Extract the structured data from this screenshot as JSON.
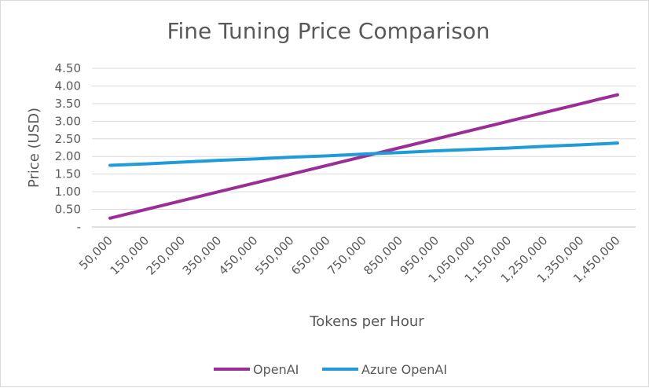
{
  "chart_data": {
    "type": "line",
    "title": "Fine Tuning Price Comparison",
    "xlabel": "Tokens per Hour",
    "ylabel": "Price (USD)",
    "x": [
      50000,
      150000,
      250000,
      350000,
      450000,
      550000,
      650000,
      750000,
      850000,
      950000,
      1050000,
      1150000,
      1250000,
      1350000,
      1450000
    ],
    "categories": [
      "50,000",
      "150,000",
      "250,000",
      "350,000",
      "450,000",
      "550,000",
      "650,000",
      "750,000",
      "850,000",
      "950,000",
      "1,050,000",
      "1,150,000",
      "1,250,000",
      "1,350,000",
      "1,450,000"
    ],
    "y_ticks": [
      "-",
      "0.50",
      "1.00",
      "1.50",
      "2.00",
      "2.50",
      "3.00",
      "3.50",
      "4.00",
      "4.50"
    ],
    "ylim": [
      0,
      4.5
    ],
    "grid": true,
    "legend_position": "bottom",
    "series": [
      {
        "name": "OpenAI",
        "color": "#9b2d96",
        "values": [
          0.25,
          0.5,
          0.75,
          1.0,
          1.25,
          1.5,
          1.75,
          2.0,
          2.25,
          2.5,
          2.75,
          3.0,
          3.25,
          3.5,
          3.75
        ]
      },
      {
        "name": "Azure OpenAI",
        "color": "#1f9bd7",
        "values": [
          1.75,
          1.79,
          1.84,
          1.89,
          1.93,
          1.98,
          2.02,
          2.07,
          2.11,
          2.16,
          2.2,
          2.24,
          2.29,
          2.33,
          2.38
        ]
      }
    ]
  }
}
